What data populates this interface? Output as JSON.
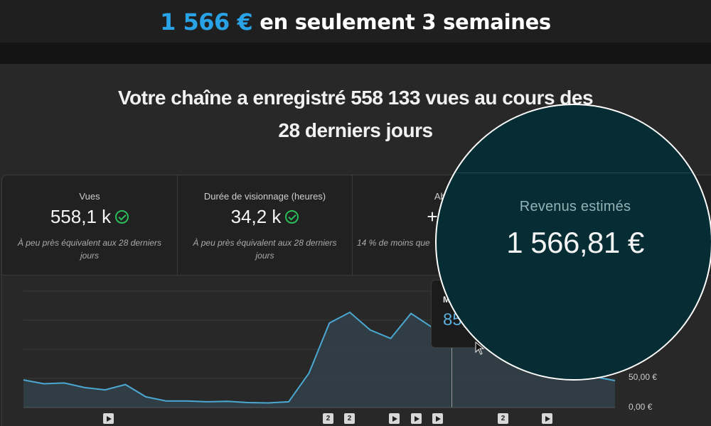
{
  "banner": {
    "amount": "1 566 €",
    "tail": "en seulement 3 semaines"
  },
  "headline": {
    "line1": "Votre chaîne a enregistré 558 133 vues au cours des",
    "line2": "28 derniers jours"
  },
  "metrics": [
    {
      "label": "Vues",
      "value": "558,1 k",
      "note_line1": "À peu près équivalent aux 28 derniers",
      "note_line2": "jours",
      "icon": "check-circle-icon"
    },
    {
      "label": "Durée de visionnage (heures)",
      "value": "34,2 k",
      "note_line1": "À peu près équivalent aux 28 derniers",
      "note_line2": "jours",
      "icon": "check-circle-icon"
    },
    {
      "label": "Abon",
      "value": "+1,7",
      "note_line1": "14 % de moins que",
      "note_line2": ""
    }
  ],
  "tooltip": {
    "label": "M",
    "value": "85,"
  },
  "chart_data": {
    "type": "area",
    "ytick_labels": [
      "50,00 €",
      "0,00 €"
    ],
    "y": [
      42,
      32,
      34,
      22,
      16,
      30,
      -2,
      -13,
      -13,
      -15,
      -14,
      -17,
      -18,
      -15,
      60,
      190,
      218,
      172,
      150,
      215,
      180,
      172,
      140,
      124,
      115,
      100,
      70,
      60,
      50,
      40
    ],
    "ylim": [
      -30,
      240
    ],
    "series_color": "#4aa8d2",
    "marker_index": 21
  },
  "video_markers": [
    {
      "type": "play",
      "label": ""
    },
    {
      "type": "count",
      "label": "2"
    },
    {
      "type": "count",
      "label": "2"
    },
    {
      "type": "play",
      "label": ""
    },
    {
      "type": "play",
      "label": ""
    },
    {
      "type": "play",
      "label": ""
    },
    {
      "type": "count",
      "label": "2"
    },
    {
      "type": "play",
      "label": ""
    }
  ],
  "zoom": {
    "label": "Revenus estimés",
    "value": "1 566,81 €"
  },
  "colors": {
    "accent": "#2aa3e6",
    "check": "#2bbd58",
    "zoom_bg": "#052d33"
  }
}
